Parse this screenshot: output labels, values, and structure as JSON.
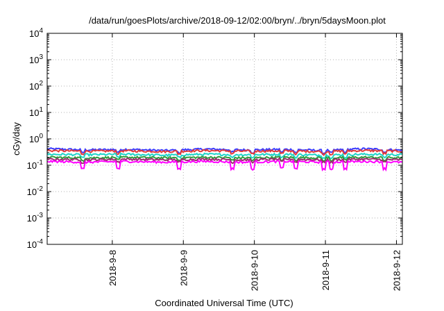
{
  "chart_data": {
    "type": "line",
    "title": "/data/run/goesPlots/archive/2018-09-12/02:00/bryn/../bryn/5daysMoon.plot",
    "xlabel": "Coordinated Universal Time (UTC)",
    "ylabel": "cGy/day",
    "y_scale": "log",
    "ylim": [
      0.0001,
      10000
    ],
    "y_ticks": [
      {
        "base": "10",
        "exp": "-4"
      },
      {
        "base": "10",
        "exp": "-3"
      },
      {
        "base": "10",
        "exp": "-2"
      },
      {
        "base": "10",
        "exp": "-1"
      },
      {
        "base": "10",
        "exp": "0"
      },
      {
        "base": "10",
        "exp": "1"
      },
      {
        "base": "10",
        "exp": "2"
      },
      {
        "base": "10",
        "exp": "3"
      },
      {
        "base": "10",
        "exp": "4"
      }
    ],
    "xlim": [
      "2018-09-07 02:00",
      "2018-09-12 02:00"
    ],
    "x_ticks": [
      "2018-9-8",
      "2018-9-9",
      "2018-9-10",
      "2018-9-11",
      "2018-9-12"
    ],
    "grid": true,
    "series": [
      {
        "color": "#3b3bff",
        "values": [
          0.42,
          0.38,
          0.4,
          0.36,
          0.41,
          0.38,
          0.4,
          0.36,
          0.42,
          0.37
        ]
      },
      {
        "color": "#e03a3a",
        "values": [
          0.36,
          0.34,
          0.35,
          0.33,
          0.36,
          0.34,
          0.35,
          0.33,
          0.36,
          0.34
        ]
      },
      {
        "color": "#1ed3c8",
        "values": [
          0.26,
          0.25,
          0.26,
          0.24,
          0.26,
          0.25,
          0.26,
          0.24,
          0.26,
          0.25
        ]
      },
      {
        "color": "#2e9c3c",
        "values": [
          0.2,
          0.19,
          0.2,
          0.19,
          0.2,
          0.19,
          0.2,
          0.19,
          0.2,
          0.19
        ]
      },
      {
        "color": "#9b2d6e",
        "values": [
          0.17,
          0.16,
          0.17,
          0.16,
          0.17,
          0.16,
          0.17,
          0.16,
          0.17,
          0.16
        ]
      },
      {
        "color": "#ff00ff",
        "values": [
          0.14,
          0.13,
          0.14,
          0.13,
          0.14,
          0.13,
          0.14,
          0.13,
          0.14,
          0.13
        ]
      }
    ]
  }
}
